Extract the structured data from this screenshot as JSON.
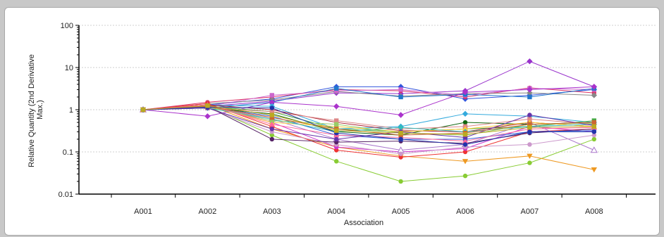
{
  "chart_data": {
    "type": "line",
    "title": "",
    "xlabel": "Association",
    "ylabel": "Relative Quantity (2nd Derivative Max.)",
    "ylabel_lines": [
      "Relative Quantity (2nd Derivative",
      "Max.)"
    ],
    "y_scale": "log",
    "ylim": [
      0.01,
      100
    ],
    "y_ticks": [
      "100",
      "10",
      "1",
      "0.1",
      "0.01"
    ],
    "grid": "horizontal dashed",
    "categories": [
      "A001",
      "A002",
      "A003",
      "A004",
      "A005",
      "A006",
      "A007",
      "A008"
    ],
    "series": [
      {
        "color": "#9933cc",
        "marker": "diamond",
        "values": [
          1,
          1.2,
          1.6,
          2.5,
          2.4,
          2.8,
          14,
          3.5
        ]
      },
      {
        "color": "#3355dd",
        "marker": "diamond",
        "values": [
          1,
          1.3,
          1.8,
          3.5,
          3.5,
          1.8,
          2.2,
          3.0
        ]
      },
      {
        "color": "#dd3366",
        "marker": "circle",
        "values": [
          1,
          1.5,
          2.0,
          3.0,
          2.8,
          2.0,
          3.3,
          2.5
        ]
      },
      {
        "color": "#888888",
        "marker": "diamond",
        "values": [
          1,
          1.4,
          1.7,
          2.7,
          2.1,
          2.4,
          2.5,
          2.2
        ]
      },
      {
        "color": "#cc66cc",
        "marker": "square",
        "values": [
          1,
          1.2,
          2.2,
          2.8,
          3.0,
          2.2,
          3.2,
          3.0
        ]
      },
      {
        "color": "#2277cc",
        "marker": "square",
        "values": [
          1,
          1.1,
          1.5,
          3.2,
          2.0,
          2.3,
          2.0,
          3.2
        ]
      },
      {
        "color": "#aa33cc",
        "marker": "diamond",
        "values": [
          1,
          0.7,
          1.5,
          1.2,
          0.75,
          2.6,
          3.0,
          3.5
        ]
      },
      {
        "color": "#33aadd",
        "marker": "diamond",
        "values": [
          1,
          1.3,
          1.2,
          0.35,
          0.4,
          0.8,
          0.7,
          0.5
        ]
      },
      {
        "color": "#88cc33",
        "marker": "circle",
        "values": [
          1,
          1.2,
          0.25,
          0.06,
          0.02,
          0.027,
          0.055,
          0.2
        ]
      },
      {
        "color": "#ee9922",
        "marker": "triangle-down",
        "values": [
          1,
          1.3,
          0.35,
          0.13,
          0.08,
          0.06,
          0.08,
          0.038
        ]
      },
      {
        "color": "#ee3333",
        "marker": "circle",
        "values": [
          1,
          1.4,
          0.4,
          0.11,
          0.075,
          0.1,
          0.3,
          0.35
        ]
      },
      {
        "color": "#cc33cc",
        "marker": "circle",
        "values": [
          1,
          1.3,
          0.5,
          0.13,
          0.1,
          0.12,
          0.4,
          0.3
        ]
      },
      {
        "color": "#aa77cc",
        "marker": "triangle",
        "values": [
          1,
          1.2,
          0.6,
          0.2,
          0.11,
          0.15,
          0.5,
          0.11
        ]
      },
      {
        "color": "#cc99cc",
        "marker": "circle",
        "values": [
          1,
          1.1,
          0.3,
          0.15,
          0.09,
          0.13,
          0.15,
          0.25
        ]
      },
      {
        "color": "#552266",
        "marker": "circle",
        "values": [
          1,
          1.2,
          0.2,
          0.17,
          0.18,
          0.16,
          0.28,
          0.35
        ]
      },
      {
        "color": "#3366dd",
        "marker": "square",
        "values": [
          1,
          1.2,
          0.7,
          0.25,
          0.2,
          0.2,
          0.3,
          0.32
        ]
      },
      {
        "color": "#116611",
        "marker": "circle",
        "values": [
          1,
          1.1,
          0.8,
          0.3,
          0.25,
          0.5,
          0.45,
          0.5
        ]
      },
      {
        "color": "#44aa44",
        "marker": "square",
        "values": [
          1,
          1.2,
          0.9,
          0.35,
          0.3,
          0.35,
          0.4,
          0.55
        ]
      },
      {
        "color": "#aa2233",
        "marker": "circle",
        "values": [
          1,
          1.3,
          1.0,
          0.5,
          0.32,
          0.3,
          0.5,
          0.4
        ]
      },
      {
        "color": "#dd8888",
        "marker": "square",
        "values": [
          1,
          1.1,
          0.9,
          0.55,
          0.35,
          0.4,
          0.6,
          0.45
        ]
      },
      {
        "color": "#ffcc33",
        "marker": "triangle",
        "values": [
          1,
          1.2,
          0.5,
          0.4,
          0.3,
          0.35,
          0.5,
          0.4
        ]
      },
      {
        "color": "#33bbbb",
        "marker": "diamond",
        "values": [
          1,
          1.1,
          0.6,
          0.3,
          0.38,
          0.3,
          0.4,
          0.45
        ]
      },
      {
        "color": "#99cc66",
        "marker": "square",
        "values": [
          1,
          1.2,
          0.55,
          0.45,
          0.28,
          0.25,
          0.45,
          0.48
        ]
      },
      {
        "color": "#ff6699",
        "marker": "triangle",
        "values": [
          1,
          1.3,
          0.45,
          0.25,
          0.22,
          0.18,
          0.35,
          0.38
        ]
      },
      {
        "color": "#6633aa",
        "marker": "circle",
        "values": [
          1,
          1.1,
          0.35,
          0.2,
          0.3,
          0.22,
          0.75,
          0.42
        ]
      },
      {
        "color": "#cc6633",
        "marker": "square",
        "values": [
          1,
          1.2,
          0.65,
          0.35,
          0.25,
          0.28,
          0.45,
          0.5
        ]
      },
      {
        "color": "#2233aa",
        "marker": "circle",
        "values": [
          1,
          1.15,
          1.1,
          0.28,
          0.2,
          0.15,
          0.3,
          0.3
        ]
      },
      {
        "color": "#bbaa22",
        "marker": "square",
        "values": [
          1,
          1.25,
          0.75,
          0.32,
          0.28,
          0.26,
          0.38,
          0.4
        ]
      }
    ]
  }
}
